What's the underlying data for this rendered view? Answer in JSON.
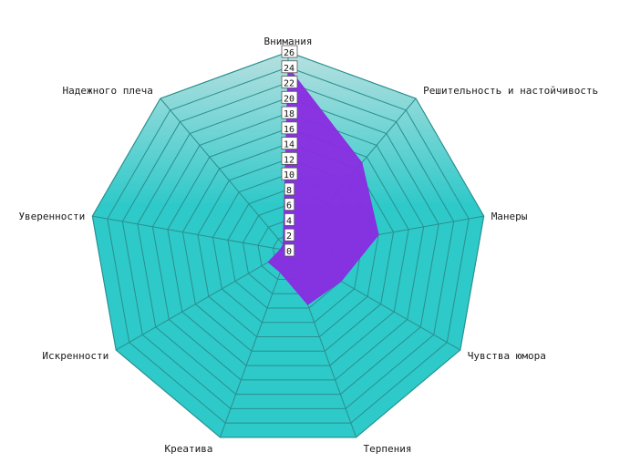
{
  "chart_data": {
    "type": "radar",
    "title": "",
    "axes": [
      "Внимания",
      "Решительность и настойчивость",
      "Манеры",
      "Чувства юмора",
      "Терпения",
      "Креатива",
      "Искренности",
      "Уверенности",
      "Надежного плеча"
    ],
    "ticks": [
      0,
      2,
      4,
      6,
      8,
      10,
      12,
      14,
      16,
      18,
      20,
      22,
      24,
      26
    ],
    "range": [
      0,
      26
    ],
    "grid": true,
    "legend": "none",
    "series": [
      {
        "values": [
          24,
          15,
          12,
          8,
          7.5,
          3,
          3,
          1,
          1
        ]
      }
    ],
    "colors": {
      "fill_light": "#b8e0e0",
      "fill_dark": "#2ec9c9",
      "grid_line": "#2a8f8f",
      "series_fill": "#8a2be2"
    }
  }
}
